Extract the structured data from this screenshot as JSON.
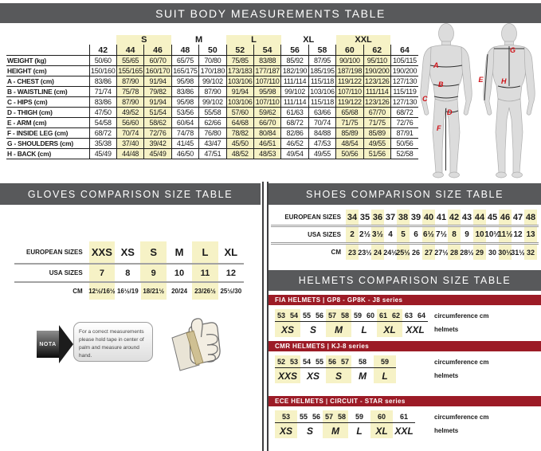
{
  "colors": {
    "header_bg": "#58595b",
    "header_text": "#ffffff",
    "highlight_yellow": "#f6f2c6",
    "series_bar_red": "#9c1b26",
    "figure_marker_red": "#cf1016"
  },
  "suit": {
    "title": "SUIT BODY MEASUREMENTS TABLE",
    "group_headers": [
      {
        "label": "",
        "span": 1,
        "highlight": false
      },
      {
        "label": "S",
        "span": 2,
        "highlight": true
      },
      {
        "label": "M",
        "span": 2,
        "highlight": false
      },
      {
        "label": "L",
        "span": 2,
        "highlight": true
      },
      {
        "label": "XL",
        "span": 2,
        "highlight": false
      },
      {
        "label": "XXL",
        "span": 2,
        "highlight": true
      },
      {
        "label": "",
        "span": 1,
        "highlight": false
      }
    ],
    "sizes": [
      "42",
      "44",
      "46",
      "48",
      "50",
      "52",
      "54",
      "56",
      "58",
      "60",
      "62",
      "64"
    ],
    "highlighted_size_indexes": [
      1,
      2,
      5,
      6,
      9,
      10
    ],
    "rows": [
      {
        "label": "WEIGHT (kg)",
        "values": [
          "50/60",
          "55/65",
          "60/70",
          "65/75",
          "70/80",
          "75/85",
          "83/88",
          "85/92",
          "87/95",
          "90/100",
          "95/110",
          "105/115"
        ]
      },
      {
        "label": "HEIGHT (cm)",
        "values": [
          "150/160",
          "155/165",
          "160/170",
          "165/175",
          "170/180",
          "173/183",
          "177/187",
          "182/190",
          "185/195",
          "187/198",
          "190/200",
          "190/200"
        ]
      },
      {
        "label": "A - CHEST (cm)",
        "values": [
          "83/86",
          "87/90",
          "91/94",
          "95/98",
          "99/102",
          "103/106",
          "107/110",
          "111/114",
          "115/118",
          "119/122",
          "123/126",
          "127/130"
        ]
      },
      {
        "label": "B - WAISTLINE (cm)",
        "values": [
          "71/74",
          "75/78",
          "79/82",
          "83/86",
          "87/90",
          "91/94",
          "95/98",
          "99/102",
          "103/106",
          "107/110",
          "111/114",
          "115/119"
        ]
      },
      {
        "label": "C - HIPS (cm)",
        "values": [
          "83/86",
          "87/90",
          "91/94",
          "95/98",
          "99/102",
          "103/106",
          "107/110",
          "111/114",
          "115/118",
          "119/122",
          "123/126",
          "127/130"
        ]
      },
      {
        "label": "D - THIGH (cm)",
        "values": [
          "47/50",
          "49/52",
          "51/54",
          "53/56",
          "55/58",
          "57/60",
          "59/62",
          "61/63",
          "63/66",
          "65/68",
          "67/70",
          "68/72"
        ]
      },
      {
        "label": "E - ARM (cm)",
        "values": [
          "54/58",
          "56/60",
          "58/62",
          "60/64",
          "62/66",
          "64/68",
          "66/70",
          "68/72",
          "70/74",
          "71/75",
          "71/75",
          "72/76"
        ]
      },
      {
        "label": "F - INSIDE LEG (cm)",
        "values": [
          "68/72",
          "70/74",
          "72/76",
          "74/78",
          "76/80",
          "78/82",
          "80/84",
          "82/86",
          "84/88",
          "85/89",
          "85/89",
          "87/91"
        ]
      },
      {
        "label": "G - SHOULDERS (cm)",
        "values": [
          "35/38",
          "37/40",
          "39/42",
          "41/45",
          "43/47",
          "45/50",
          "46/51",
          "46/52",
          "47/53",
          "48/54",
          "49/55",
          "50/56"
        ]
      },
      {
        "label": "H - BACK (cm)",
        "values": [
          "45/49",
          "44/48",
          "45/49",
          "46/50",
          "47/51",
          "48/52",
          "48/53",
          "49/54",
          "49/55",
          "50/56",
          "51/56",
          "52/58"
        ]
      }
    ],
    "figure_front_markers": [
      "A",
      "B",
      "C",
      "D",
      "F"
    ],
    "figure_back_markers": [
      "G",
      "E",
      "H"
    ]
  },
  "gloves": {
    "title": "GLOVES COMPARISON SIZE TABLE",
    "rows": [
      {
        "label": "EUROPEAN SIZES",
        "values": [
          "XXS",
          "XS",
          "S",
          "M",
          "L",
          "XL"
        ]
      },
      {
        "label": "USA SIZES",
        "values": [
          "7",
          "8",
          "9",
          "10",
          "11",
          "12"
        ]
      },
      {
        "label": "CM",
        "values": [
          "12½/16½",
          "16½/19",
          "18/21½",
          "20/24",
          "23/26½",
          "25½/30"
        ]
      }
    ],
    "highlighted_indexes": [
      0,
      2,
      4
    ],
    "note_label": "NOTA",
    "note_text": "For a correct measurements please hold tape in center of palm and measure around hand."
  },
  "shoes": {
    "title": "SHOES COMPARISON SIZE TABLE",
    "rows": [
      {
        "label": "EUROPEAN SIZES",
        "values": [
          "34",
          "35",
          "36",
          "37",
          "38",
          "39",
          "40",
          "41",
          "42",
          "43",
          "44",
          "45",
          "46",
          "47",
          "48"
        ]
      },
      {
        "label": "USA SIZES",
        "values": [
          "2",
          "2½",
          "3½",
          "4",
          "5",
          "6",
          "6½",
          "7½",
          "8",
          "9",
          "10",
          "10½",
          "11½",
          "12",
          "13"
        ]
      },
      {
        "label": "CM",
        "values": [
          "23",
          "23½",
          "24",
          "24½",
          "25½",
          "26",
          "27",
          "27½",
          "28",
          "28½",
          "29",
          "30",
          "30½",
          "31½",
          "32"
        ]
      }
    ],
    "highlighted_indexes": [
      0,
      2,
      4,
      6,
      8,
      10,
      12,
      14
    ]
  },
  "helmets": {
    "title": "HELMETS COMPARISON SIZE TABLE",
    "col_label_circumference": "circumference cm",
    "col_label_helmets": "helmets",
    "sections": [
      {
        "name": "FIA HELMETS | GP8 - GP8K - J8 series",
        "groups": [
          {
            "values": [
              "53",
              "54"
            ],
            "size": "XS",
            "highlight": true
          },
          {
            "values": [
              "55",
              "56"
            ],
            "size": "S",
            "highlight": false
          },
          {
            "values": [
              "57",
              "58"
            ],
            "size": "M",
            "highlight": true
          },
          {
            "values": [
              "59",
              "60"
            ],
            "size": "L",
            "highlight": false
          },
          {
            "values": [
              "61",
              "62"
            ],
            "size": "XL",
            "highlight": true
          },
          {
            "values": [
              "63",
              "64"
            ],
            "size": "XXL",
            "highlight": false
          }
        ]
      },
      {
        "name": "CMR HELMETS | KJ-8 series",
        "groups": [
          {
            "values": [
              "52",
              "53"
            ],
            "size": "XXS",
            "highlight": true
          },
          {
            "values": [
              "54",
              "55"
            ],
            "size": "XS",
            "highlight": false
          },
          {
            "values": [
              "56",
              "57"
            ],
            "size": "S",
            "highlight": true
          },
          {
            "values": [
              "58"
            ],
            "size": "M",
            "highlight": false
          },
          {
            "values": [
              "59"
            ],
            "size": "L",
            "highlight": true
          }
        ]
      },
      {
        "name": "ECE HELMETS | CIRCUIT - STAR series",
        "groups": [
          {
            "values": [
              "53"
            ],
            "size": "XS",
            "highlight": true
          },
          {
            "values": [
              "55",
              "56"
            ],
            "size": "S",
            "highlight": false
          },
          {
            "values": [
              "57",
              "58"
            ],
            "size": "M",
            "highlight": true
          },
          {
            "values": [
              "59"
            ],
            "size": "L",
            "highlight": false
          },
          {
            "values": [
              "60"
            ],
            "size": "XL",
            "highlight": true
          },
          {
            "values": [
              "61"
            ],
            "size": "XXL",
            "highlight": false
          }
        ]
      }
    ]
  }
}
